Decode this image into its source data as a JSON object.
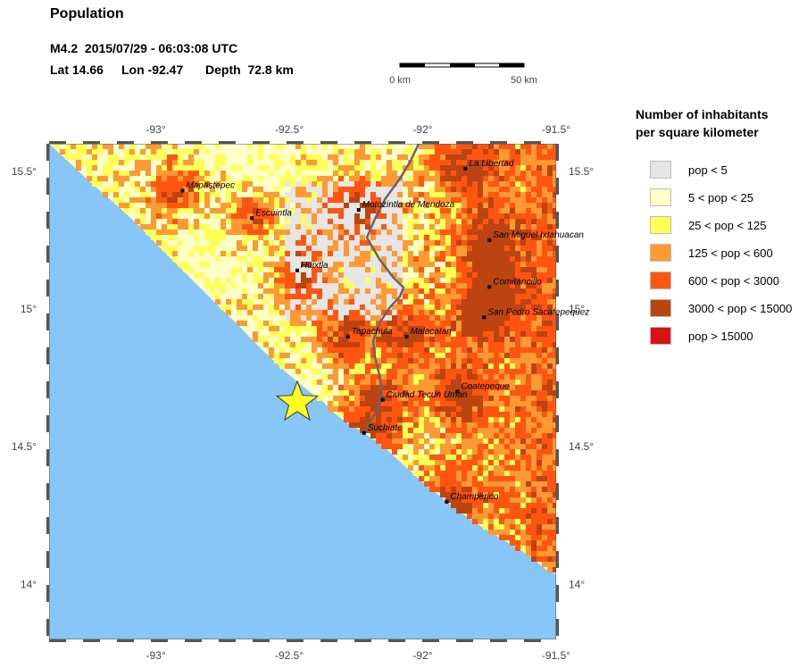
{
  "header": {
    "title": "Population",
    "event_line": "M4.2  2015/07/29 - 06:03:08 UTC",
    "lat_label": "Lat 14.66",
    "lon_label": "Lon -92.47",
    "depth_label": "Depth  72.8 km"
  },
  "scale_bar": {
    "left_label": "0 km",
    "right_label": "50 km"
  },
  "map": {
    "extent": {
      "lon_min": -93.4,
      "lon_max": -91.5,
      "lat_min": 13.8,
      "lat_max": 15.6
    },
    "lon_ticks": [
      {
        "value": -93,
        "label": "-93°"
      },
      {
        "value": -92.5,
        "label": "-92.5°"
      },
      {
        "value": -92,
        "label": "-92°"
      },
      {
        "value": -91.5,
        "label": "-91.5°"
      }
    ],
    "lat_ticks": [
      {
        "value": 15.5,
        "label": "15.5°"
      },
      {
        "value": 15,
        "label": "15°"
      },
      {
        "value": 14.5,
        "label": "14.5°"
      },
      {
        "value": 14,
        "label": "14°"
      }
    ],
    "epicenter": {
      "lat": 14.66,
      "lon": -92.47
    },
    "colors": {
      "ocean": "#87c6f7",
      "border": "#666666",
      "star_fill": "#ffff22",
      "pop_lt5": "#e6e6e6",
      "pop_5_25": "#ffffc8",
      "pop_25_125": "#ffff55",
      "pop_125_600": "#ff9933",
      "pop_600_3000": "#ff5511",
      "pop_3000_15000": "#bb4411",
      "pop_gt15000": "#dd1111"
    },
    "cities": [
      {
        "name": "Mapastepec",
        "lon": -92.9,
        "lat": 15.43
      },
      {
        "name": "Escuintla",
        "lon": -92.64,
        "lat": 15.33
      },
      {
        "name": "Motozintla de Mendoza",
        "lon": -92.24,
        "lat": 15.36
      },
      {
        "name": "La Libertad",
        "lon": -91.84,
        "lat": 15.51
      },
      {
        "name": "San Miguel Ixtahuacan",
        "lon": -91.75,
        "lat": 15.25
      },
      {
        "name": "Huixtla",
        "lon": -92.47,
        "lat": 15.14
      },
      {
        "name": "Comitancillo",
        "lon": -91.75,
        "lat": 15.08
      },
      {
        "name": "San Pedro Sacatepequez",
        "lon": -91.77,
        "lat": 14.97
      },
      {
        "name": "Tapachula",
        "lon": -92.28,
        "lat": 14.9
      },
      {
        "name": "Malacatan",
        "lon": -92.06,
        "lat": 14.9
      },
      {
        "name": "Coatepeque",
        "lon": -91.87,
        "lat": 14.7
      },
      {
        "name": "Ciudad Tecun Uman",
        "lon": -92.15,
        "lat": 14.67
      },
      {
        "name": "Suchiate",
        "lon": -92.22,
        "lat": 14.55
      },
      {
        "name": "Champerico",
        "lon": -91.91,
        "lat": 14.3
      }
    ]
  },
  "legend": {
    "title_line1": "Number of inhabitants",
    "title_line2": "per square kilometer",
    "items": [
      {
        "label": "pop < 5",
        "color": "#e6e6e6"
      },
      {
        "label": "5 < pop < 25",
        "color": "#ffffc8"
      },
      {
        "label": "25 < pop < 125",
        "color": "#ffff55"
      },
      {
        "label": "125 < pop < 600",
        "color": "#ff9933"
      },
      {
        "label": "600 < pop < 3000",
        "color": "#ff5511"
      },
      {
        "label": "3000 < pop < 15000",
        "color": "#bb4411"
      },
      {
        "label": "pop > 15000",
        "color": "#dd1111"
      }
    ]
  }
}
